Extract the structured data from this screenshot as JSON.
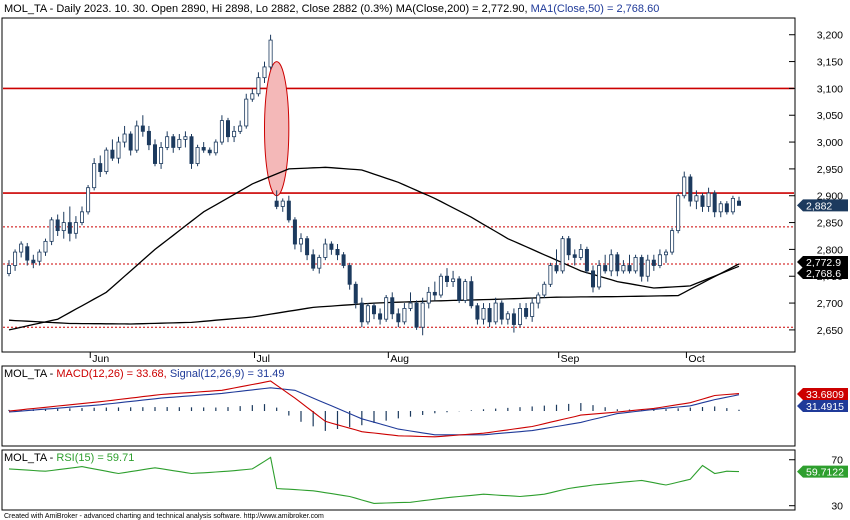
{
  "chart_data": {
    "type": "candlestick",
    "ticker": "MOL_TA",
    "header": {
      "prefix": "MOL_TA - Daily 2023. 10. 30. Open 2890, Hi 2898, Lo 2882, Close 2882 (0.3%) ",
      "ma200": "MA(Close,200) = 2,772.90,",
      "ma50": "MA1(Close,50) = 2,768.60"
    },
    "months": [
      "Jun",
      "Jul",
      "Aug",
      "Sep",
      "Oct"
    ],
    "price_ticks": [
      "3,200",
      "3,150",
      "3,100",
      "3,050",
      "3,000",
      "2,950",
      "2,900",
      "2,850",
      "2,800",
      "2,750",
      "2,700",
      "2,650"
    ],
    "price_ylim": [
      2620,
      3220
    ],
    "candles": [
      [
        2755,
        2780,
        2750,
        2770
      ],
      [
        2770,
        2800,
        2760,
        2795
      ],
      [
        2795,
        2815,
        2785,
        2810
      ],
      [
        2805,
        2812,
        2770,
        2780
      ],
      [
        2780,
        2790,
        2765,
        2775
      ],
      [
        2778,
        2800,
        2770,
        2795
      ],
      [
        2795,
        2820,
        2788,
        2815
      ],
      [
        2815,
        2860,
        2808,
        2855
      ],
      [
        2855,
        2865,
        2825,
        2835
      ],
      [
        2835,
        2870,
        2820,
        2850
      ],
      [
        2850,
        2880,
        2815,
        2830
      ],
      [
        2830,
        2862,
        2820,
        2850
      ],
      [
        2850,
        2880,
        2845,
        2870
      ],
      [
        2870,
        2920,
        2865,
        2915
      ],
      [
        2915,
        2970,
        2910,
        2960
      ],
      [
        2960,
        2975,
        2935,
        2945
      ],
      [
        2945,
        2990,
        2940,
        2985
      ],
      [
        2985,
        3005,
        2965,
        2970
      ],
      [
        2970,
        3010,
        2960,
        3000
      ],
      [
        3000,
        3030,
        2990,
        3015
      ],
      [
        3015,
        3020,
        2975,
        2985
      ],
      [
        2985,
        3040,
        2980,
        3030
      ],
      [
        3030,
        3050,
        3010,
        3020
      ],
      [
        3020,
        3030,
        2985,
        2995
      ],
      [
        2995,
        3005,
        2955,
        2960
      ],
      [
        2960,
        3000,
        2950,
        2990
      ],
      [
        2990,
        3020,
        2985,
        3010
      ],
      [
        3010,
        3015,
        2980,
        2990
      ],
      [
        2990,
        3015,
        2985,
        3005
      ],
      [
        3005,
        3020,
        2990,
        3010
      ],
      [
        3010,
        3015,
        2950,
        2960
      ],
      [
        2960,
        2995,
        2955,
        2990
      ],
      [
        2990,
        3000,
        2980,
        2985
      ],
      [
        2985,
        2990,
        2975,
        2980
      ],
      [
        2980,
        3005,
        2975,
        3000
      ],
      [
        3000,
        3050,
        2995,
        3040
      ],
      [
        3040,
        3045,
        3000,
        3010
      ],
      [
        3010,
        3030,
        3000,
        3020
      ],
      [
        3020,
        3040,
        3015,
        3030
      ],
      [
        3030,
        3090,
        3025,
        3080
      ],
      [
        3080,
        3100,
        3075,
        3090
      ],
      [
        3090,
        3130,
        3085,
        3120
      ],
      [
        3120,
        3150,
        3110,
        3140
      ],
      [
        3140,
        3200,
        3135,
        3190
      ],
      [
        2890,
        2910,
        2875,
        2880
      ],
      [
        2880,
        2895,
        2870,
        2890
      ],
      [
        2890,
        2900,
        2850,
        2855
      ],
      [
        2855,
        2860,
        2800,
        2810
      ],
      [
        2810,
        2830,
        2795,
        2820
      ],
      [
        2820,
        2825,
        2780,
        2790
      ],
      [
        2790,
        2800,
        2760,
        2765
      ],
      [
        2765,
        2790,
        2755,
        2785
      ],
      [
        2785,
        2820,
        2780,
        2810
      ],
      [
        2810,
        2815,
        2790,
        2800
      ],
      [
        2800,
        2810,
        2780,
        2790
      ],
      [
        2790,
        2795,
        2765,
        2770
      ],
      [
        2770,
        2775,
        2725,
        2735
      ],
      [
        2735,
        2740,
        2690,
        2700
      ],
      [
        2700,
        2710,
        2655,
        2665
      ],
      [
        2665,
        2700,
        2660,
        2695
      ],
      [
        2695,
        2700,
        2670,
        2680
      ],
      [
        2680,
        2690,
        2660,
        2670
      ],
      [
        2670,
        2715,
        2665,
        2710
      ],
      [
        2710,
        2720,
        2670,
        2680
      ],
      [
        2680,
        2690,
        2655,
        2665
      ],
      [
        2665,
        2700,
        2660,
        2690
      ],
      [
        2690,
        2720,
        2685,
        2700
      ],
      [
        2700,
        2705,
        2650,
        2655
      ],
      [
        2655,
        2710,
        2640,
        2700
      ],
      [
        2700,
        2730,
        2690,
        2720
      ],
      [
        2720,
        2740,
        2705,
        2715
      ],
      [
        2715,
        2755,
        2710,
        2750
      ],
      [
        2750,
        2765,
        2730,
        2740
      ],
      [
        2740,
        2760,
        2730,
        2745
      ],
      [
        2745,
        2750,
        2700,
        2705
      ],
      [
        2705,
        2745,
        2700,
        2740
      ],
      [
        2740,
        2750,
        2690,
        2695
      ],
      [
        2695,
        2700,
        2660,
        2670
      ],
      [
        2670,
        2700,
        2660,
        2690
      ],
      [
        2690,
        2700,
        2655,
        2665
      ],
      [
        2665,
        2710,
        2660,
        2700
      ],
      [
        2700,
        2705,
        2660,
        2670
      ],
      [
        2670,
        2685,
        2660,
        2680
      ],
      [
        2680,
        2690,
        2645,
        2660
      ],
      [
        2660,
        2700,
        2655,
        2690
      ],
      [
        2690,
        2700,
        2670,
        2675
      ],
      [
        2675,
        2710,
        2665,
        2700
      ],
      [
        2700,
        2720,
        2690,
        2715
      ],
      [
        2715,
        2740,
        2710,
        2735
      ],
      [
        2735,
        2775,
        2730,
        2770
      ],
      [
        2770,
        2800,
        2755,
        2760
      ],
      [
        2760,
        2825,
        2755,
        2820
      ],
      [
        2820,
        2825,
        2780,
        2790
      ],
      [
        2790,
        2800,
        2770,
        2785
      ],
      [
        2785,
        2810,
        2780,
        2800
      ],
      [
        2800,
        2805,
        2755,
        2760
      ],
      [
        2760,
        2770,
        2720,
        2730
      ],
      [
        2730,
        2780,
        2725,
        2770
      ],
      [
        2770,
        2790,
        2755,
        2760
      ],
      [
        2760,
        2800,
        2750,
        2790
      ],
      [
        2790,
        2795,
        2750,
        2760
      ],
      [
        2760,
        2780,
        2755,
        2770
      ],
      [
        2770,
        2790,
        2755,
        2760
      ],
      [
        2760,
        2790,
        2755,
        2785
      ],
      [
        2785,
        2790,
        2740,
        2750
      ],
      [
        2750,
        2790,
        2740,
        2780
      ],
      [
        2780,
        2790,
        2760,
        2770
      ],
      [
        2770,
        2800,
        2765,
        2790
      ],
      [
        2790,
        2800,
        2775,
        2795
      ],
      [
        2795,
        2840,
        2790,
        2835
      ],
      [
        2835,
        2905,
        2830,
        2900
      ],
      [
        2900,
        2945,
        2895,
        2935
      ],
      [
        2935,
        2940,
        2880,
        2890
      ],
      [
        2890,
        2910,
        2875,
        2900
      ],
      [
        2900,
        2905,
        2870,
        2880
      ],
      [
        2880,
        2915,
        2870,
        2905
      ],
      [
        2905,
        2910,
        2860,
        2870
      ],
      [
        2870,
        2890,
        2860,
        2885
      ],
      [
        2885,
        2890,
        2865,
        2870
      ],
      [
        2870,
        2900,
        2865,
        2895
      ],
      [
        2890,
        2898,
        2882,
        2882
      ]
    ],
    "ma200": {
      "name": "MA(Close,200)",
      "anchors": [
        [
          0,
          2668
        ],
        [
          10,
          2662
        ],
        [
          20,
          2661
        ],
        [
          30,
          2664
        ],
        [
          40,
          2674
        ],
        [
          50,
          2692
        ],
        [
          60,
          2700
        ],
        [
          70,
          2704
        ],
        [
          80,
          2707
        ],
        [
          90,
          2711
        ],
        [
          100,
          2712
        ],
        [
          110,
          2714
        ],
        [
          120,
          2772.9
        ]
      ]
    },
    "ma50": {
      "name": "MA1(Close,50)",
      "anchors": [
        [
          0,
          2650
        ],
        [
          8,
          2670
        ],
        [
          16,
          2720
        ],
        [
          24,
          2800
        ],
        [
          32,
          2870
        ],
        [
          40,
          2922
        ],
        [
          46,
          2950
        ],
        [
          52,
          2953
        ],
        [
          58,
          2948
        ],
        [
          64,
          2925
        ],
        [
          70,
          2895
        ],
        [
          76,
          2860
        ],
        [
          82,
          2820
        ],
        [
          88,
          2790
        ],
        [
          94,
          2760
        ],
        [
          100,
          2740
        ],
        [
          106,
          2728
        ],
        [
          112,
          2732
        ],
        [
          120,
          2768.6
        ]
      ]
    },
    "hlines": [
      {
        "value": 3100,
        "style": "solid"
      },
      {
        "value": 2905,
        "style": "solid"
      },
      {
        "value": 2842,
        "style": "dotted"
      },
      {
        "value": 2772.9,
        "style": "dotted"
      },
      {
        "value": 2655,
        "style": "dotted"
      }
    ],
    "price_badges": [
      {
        "label": "2,882",
        "value": 2882,
        "color": "#1c3a5e"
      },
      {
        "label": "2,772.9",
        "value": 2772.9,
        "color": "#000000"
      },
      {
        "label": "2,768.6",
        "value": 2768.6,
        "color": "#000000"
      }
    ],
    "ellipse": {
      "center_index": 44,
      "center_value": 3025,
      "half_width_bars": 2.0,
      "half_height_value": 125
    },
    "macd": {
      "label_prefix": "MOL_TA - ",
      "macd_label": "MACD(12,26) = 33.68,",
      "signal_label": "Signal(12,26,9) = 31.49",
      "ylim": [
        -60,
        60
      ],
      "macd_value": 33.68,
      "signal_value": 31.49,
      "macd_anchors": [
        [
          0,
          0
        ],
        [
          15,
          18
        ],
        [
          25,
          32
        ],
        [
          35,
          40
        ],
        [
          43,
          58
        ],
        [
          47,
          25
        ],
        [
          52,
          -20
        ],
        [
          58,
          -40
        ],
        [
          64,
          -48
        ],
        [
          70,
          -50
        ],
        [
          78,
          -43
        ],
        [
          86,
          -30
        ],
        [
          94,
          -8
        ],
        [
          100,
          -2
        ],
        [
          106,
          5
        ],
        [
          112,
          16
        ],
        [
          116,
          30
        ],
        [
          120,
          33.68
        ]
      ],
      "signal_anchors": [
        [
          0,
          -2
        ],
        [
          15,
          12
        ],
        [
          25,
          25
        ],
        [
          35,
          34
        ],
        [
          43,
          45
        ],
        [
          47,
          40
        ],
        [
          52,
          15
        ],
        [
          58,
          -15
        ],
        [
          64,
          -35
        ],
        [
          70,
          -46
        ],
        [
          78,
          -46
        ],
        [
          86,
          -38
        ],
        [
          94,
          -22
        ],
        [
          100,
          -5
        ],
        [
          106,
          3
        ],
        [
          112,
          10
        ],
        [
          116,
          22
        ],
        [
          120,
          31.49
        ]
      ]
    },
    "rsi": {
      "label_prefix": "MOL_TA - ",
      "label": "RSI(15) = 59.71",
      "ylim": [
        28,
        75
      ],
      "ticks": [
        "70",
        "30"
      ],
      "value": 59.71,
      "anchors": [
        [
          0,
          62
        ],
        [
          6,
          60
        ],
        [
          12,
          64
        ],
        [
          18,
          58
        ],
        [
          24,
          63
        ],
        [
          30,
          58
        ],
        [
          36,
          60
        ],
        [
          40,
          62
        ],
        [
          43,
          72
        ],
        [
          44,
          45
        ],
        [
          50,
          43
        ],
        [
          56,
          38
        ],
        [
          60,
          32
        ],
        [
          66,
          33
        ],
        [
          72,
          37
        ],
        [
          78,
          40
        ],
        [
          84,
          38
        ],
        [
          88,
          40
        ],
        [
          92,
          45
        ],
        [
          96,
          48
        ],
        [
          100,
          50
        ],
        [
          104,
          52
        ],
        [
          108,
          48
        ],
        [
          112,
          53
        ],
        [
          114,
          65
        ],
        [
          116,
          58
        ],
        [
          118,
          60
        ],
        [
          120,
          59.71
        ]
      ]
    },
    "badges": {
      "macd": {
        "label": "33.6809",
        "color": "#cc0000"
      },
      "signal": {
        "label": "31.4915",
        "color": "#1f3a99"
      },
      "rsi": {
        "label": "59.7122",
        "color": "#2e9f2e"
      }
    },
    "footer": "Created with AmiBroker - advanced charting and technical analysis software. http://www.amibroker.com"
  }
}
